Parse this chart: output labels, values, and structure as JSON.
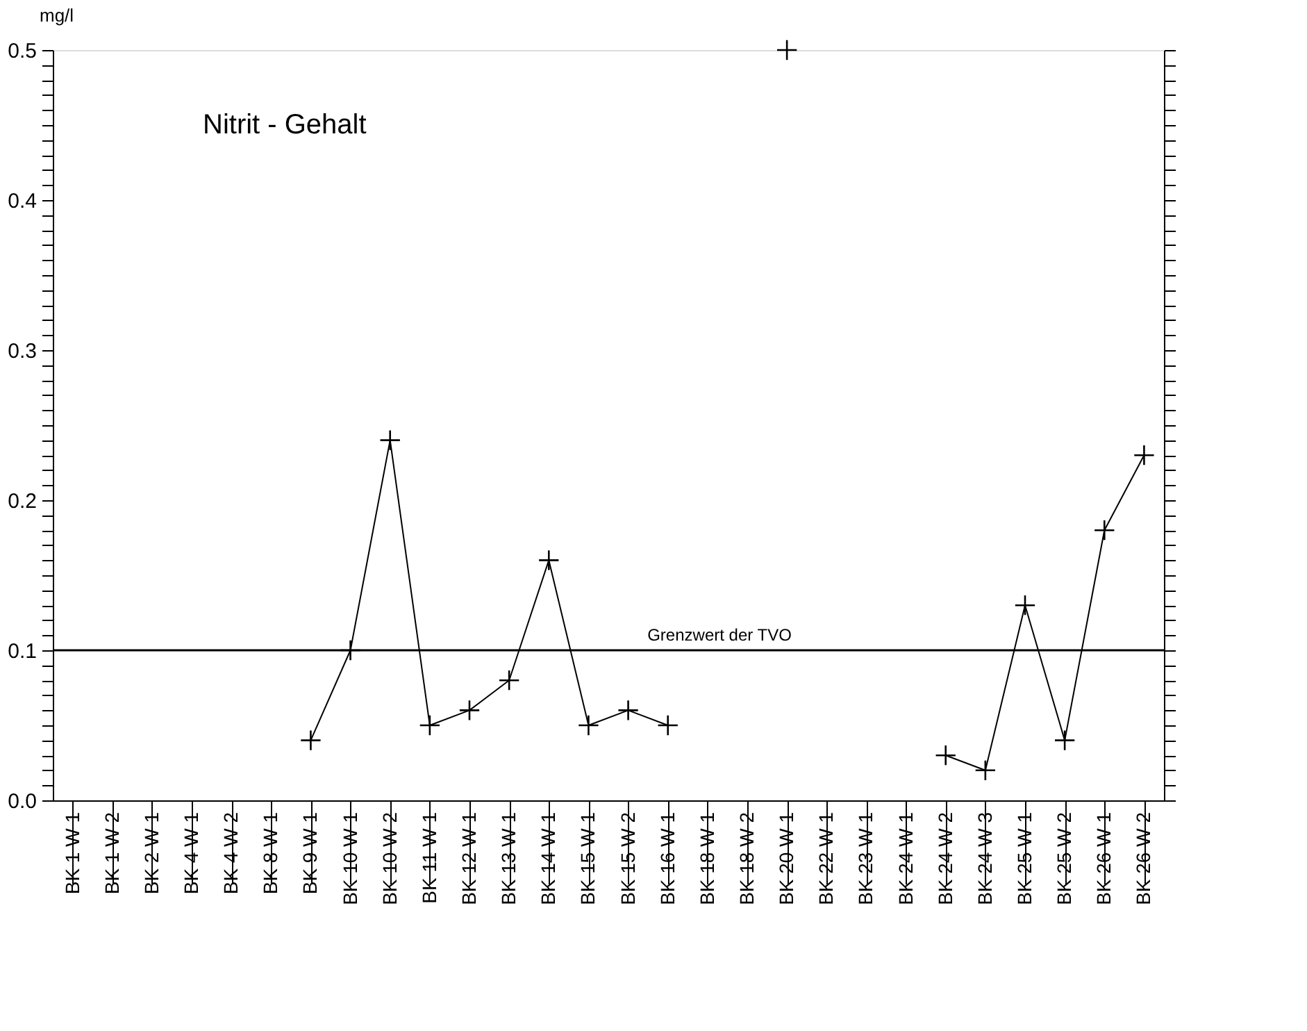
{
  "chart_data": {
    "type": "line",
    "title": "Nitrit - Gehalt",
    "ylabel": "mg/l",
    "categories": [
      "BK 1 W 1",
      "BK 1 W 2",
      "BK 2 W 1",
      "BK 4 W 1",
      "BK 4 W 2",
      "BK 8 W 1",
      "BK 9 W 1",
      "BK 10 W 1",
      "BK 10 W 2",
      "BK 11 W 1",
      "BK 12 W 1",
      "BK 13 W 1",
      "BK 14 W 1",
      "BK 15 W 1",
      "BK 15 W 2",
      "BK 16 W 1",
      "BK 18 W 1",
      "BK 18 W 2",
      "BK 20 W 1",
      "BK 22 W 1",
      "BK 23 W 1",
      "BK 24 W 1",
      "BK 24 W 2",
      "BK 24 W 3",
      "BK 25 W 1",
      "BK 25 W 2",
      "BK 26 W 1",
      "BK 26 W 2"
    ],
    "series": [
      {
        "color": "#000000",
        "values": [
          null,
          null,
          null,
          null,
          null,
          null,
          0.04,
          0.1,
          0.24,
          0.05,
          0.06,
          0.08,
          0.16,
          0.05,
          0.06,
          0.05,
          null,
          null,
          0.5,
          null,
          null,
          null,
          0.03,
          0.02,
          0.13,
          0.04,
          0.18,
          0.23
        ]
      }
    ],
    "ylim": [
      0,
      0.5
    ],
    "yticks": [
      {
        "value": 0,
        "label": "0.0"
      },
      {
        "value": 0.01,
        "label": null
      },
      {
        "value": 0.02,
        "label": null
      },
      {
        "value": 0.03,
        "label": null
      },
      {
        "value": 0.04,
        "label": null
      },
      {
        "value": 0.05,
        "label": null
      },
      {
        "value": 0.06,
        "label": null
      },
      {
        "value": 0.07,
        "label": null
      },
      {
        "value": 0.08,
        "label": null
      },
      {
        "value": 0.09,
        "label": null
      },
      0.1,
      {
        "value": 0.11,
        "label": null
      },
      {
        "value": 0.12,
        "label": null
      },
      {
        "value": 0.13,
        "label": null
      },
      {
        "value": 0.14,
        "label": null
      },
      {
        "value": 0.15,
        "label": null
      },
      {
        "value": 0.16,
        "label": null
      },
      {
        "value": 0.17,
        "label": null
      },
      {
        "value": 0.18,
        "label": null
      },
      {
        "value": 0.19,
        "label": null
      },
      0.2,
      {
        "value": 0.21,
        "label": null
      },
      {
        "value": 0.22,
        "label": null
      },
      {
        "value": 0.23,
        "label": null
      },
      {
        "value": 0.24,
        "label": null
      },
      {
        "value": 0.25,
        "label": null
      },
      {
        "value": 0.26,
        "label": null
      },
      {
        "value": 0.27,
        "label": null
      },
      {
        "value": 0.28,
        "label": null
      },
      {
        "value": 0.29,
        "label": null
      },
      0.3,
      {
        "value": 0.31,
        "label": null
      },
      {
        "value": 0.32,
        "label": null
      },
      {
        "value": 0.33,
        "label": null
      },
      {
        "value": 0.34,
        "label": null
      },
      {
        "value": 0.35,
        "label": null
      },
      {
        "value": 0.36,
        "label": null
      },
      {
        "value": 0.37,
        "label": null
      },
      {
        "value": 0.38,
        "label": null
      },
      {
        "value": 0.39,
        "label": null
      },
      0.4,
      {
        "value": 0.41,
        "label": null
      },
      {
        "value": 0.42,
        "label": null
      },
      {
        "value": 0.43,
        "label": null
      },
      {
        "value": 0.44,
        "label": null
      },
      {
        "value": 0.45,
        "label": null
      },
      {
        "value": 0.46,
        "label": null
      },
      {
        "value": 0.47,
        "label": null
      },
      {
        "value": 0.48,
        "label": null
      },
      {
        "value": 0.49,
        "label": null
      },
      0.5
    ],
    "ref_lines": [
      {
        "axis": "y",
        "value": 0.1,
        "label": "Grenzwert der TVO",
        "color": "#000000"
      }
    ],
    "marker": "cross",
    "line_style": "solid"
  }
}
